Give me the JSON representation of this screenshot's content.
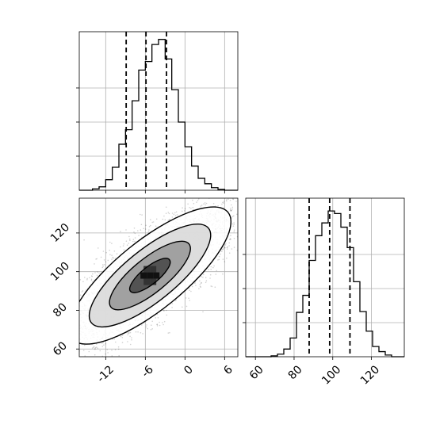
{
  "chart_data": [
    {
      "type": "histogram",
      "panel": "top-left",
      "variable": "x",
      "xlim": [
        -16,
        8
      ],
      "bins_start": -16,
      "bin_width": 1,
      "counts": [
        0,
        0,
        8,
        20,
        62,
        135,
        270,
        355,
        525,
        705,
        755,
        855,
        885,
        770,
        590,
        400,
        255,
        142,
        70,
        38,
        15,
        5,
        0,
        0
      ],
      "ylim": [
        0,
        930
      ],
      "grid": true,
      "quantile_lines": [
        -8.9,
        -5.9,
        -2.8
      ],
      "x_tick_values": [
        -12,
        -6,
        0,
        6
      ],
      "y_tick_values": [
        200,
        400,
        600
      ],
      "x_tick_labels_visible": false,
      "y_tick_labels_visible": false,
      "colors": {
        "line": "#000000",
        "grid": "#b0b0b0"
      }
    },
    {
      "type": "2d-histogram-contour",
      "panel": "bottom-left",
      "x_variable": "x",
      "y_variable": "y",
      "xlim": [
        -16,
        8
      ],
      "ylim": [
        56,
        138
      ],
      "grid": true,
      "x_tick_labels": [
        "-12",
        "-6",
        "0",
        "6"
      ],
      "x_tick_values": [
        -12,
        -6,
        0,
        6
      ],
      "y_tick_labels": [
        "60",
        "80",
        "100",
        "120"
      ],
      "y_tick_values": [
        60,
        80,
        100,
        120
      ],
      "center": {
        "x": -5.3,
        "y": 98
      },
      "contour_levels": [
        {
          "level": "0.5-sigma",
          "semi_major": 3.8,
          "semi_minor": 1.3
        },
        {
          "level": "1-sigma",
          "semi_major": 7.6,
          "semi_minor": 2.6
        },
        {
          "level": "1.5-sigma",
          "semi_major": 11.4,
          "semi_minor": 3.9
        },
        {
          "level": "2-sigma",
          "semi_major": 15.2,
          "semi_minor": 5.2
        }
      ],
      "correlation_angle_deg": 39,
      "scatter_samples": 4000,
      "colors": {
        "line": "#000000",
        "grid": "#b0b0b0",
        "points": "#000000"
      }
    },
    {
      "type": "histogram",
      "panel": "bottom-right",
      "variable": "y",
      "xlim": [
        55,
        137
      ],
      "bins_start": 55,
      "bin_width": 3.28,
      "counts": [
        0,
        0,
        0,
        0,
        5,
        15,
        45,
        110,
        260,
        360,
        565,
        710,
        785,
        855,
        840,
        760,
        640,
        440,
        265,
        150,
        60,
        30,
        10,
        0,
        0
      ],
      "ylim": [
        0,
        930
      ],
      "grid": true,
      "quantile_lines": [
        87.8,
        98.4,
        108.9
      ],
      "x_tick_labels": [
        "60",
        "80",
        "100",
        "120"
      ],
      "x_tick_values": [
        60,
        80,
        100,
        120
      ],
      "y_tick_values": [
        200,
        400,
        600
      ],
      "y_tick_labels_visible": false,
      "colors": {
        "line": "#000000",
        "grid": "#b0b0b0"
      }
    }
  ]
}
